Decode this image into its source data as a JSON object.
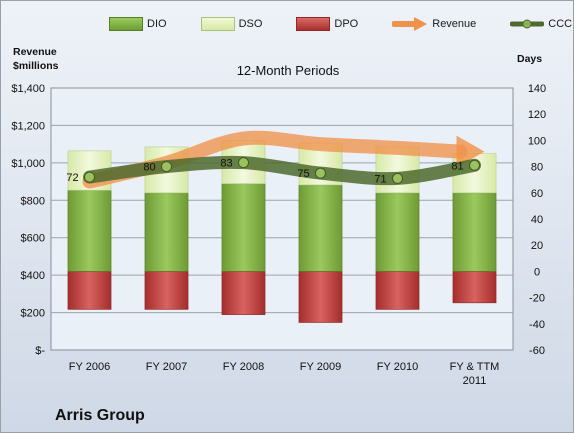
{
  "chart_data": {
    "type": "bar",
    "title": "12-Month Periods",
    "company": "Arris Group",
    "left_axis_label": "Revenue\n$millions",
    "left_axis_label_lines": [
      "Revenue",
      "$millions"
    ],
    "right_axis_label": "Days",
    "categories": [
      "FY 2006",
      "FY 2007",
      "FY 2008",
      "FY 2009",
      "FY 2010",
      "FY & TTM 2011"
    ],
    "category_lines": [
      [
        "FY 2006"
      ],
      [
        "FY 2007"
      ],
      [
        "FY 2008"
      ],
      [
        "FY 2009"
      ],
      [
        "FY 2010"
      ],
      [
        "FY & TTM",
        "2011"
      ]
    ],
    "left_axis": {
      "min": 0,
      "max": 1400,
      "step": 200,
      "ticks": [
        "$-",
        "$200",
        "$400",
        "$600",
        "$800",
        "$1,000",
        "$1,200",
        "$1,400"
      ]
    },
    "right_axis": {
      "min": -60,
      "max": 140,
      "step": 20,
      "ticks": [
        "-60",
        "-40",
        "-20",
        "0",
        "20",
        "40",
        "60",
        "80",
        "100",
        "120",
        "140"
      ]
    },
    "series": [
      {
        "name": "DIO",
        "axis": "days",
        "values": [
          62,
          60,
          67,
          66,
          60,
          60
        ],
        "color": "#7aa83f"
      },
      {
        "name": "DSO",
        "axis": "days",
        "values": [
          30,
          35,
          33,
          32,
          35,
          30
        ],
        "color": "#e3efbb"
      },
      {
        "name": "DPO",
        "axis": "days",
        "values": [
          -29,
          -29,
          -33,
          -39,
          -29,
          -24
        ],
        "color": "#c04744"
      },
      {
        "name": "Revenue",
        "axis": "revenue",
        "values": [
          900,
          1000,
          1130,
          1100,
          1080,
          1060
        ],
        "color": "#f0924a"
      },
      {
        "name": "CCC",
        "axis": "days",
        "values": [
          72,
          80,
          83,
          75,
          71,
          81
        ],
        "color": "#4f6a2e"
      }
    ],
    "ccc_labels": [
      "72",
      "80",
      "83",
      "75",
      "71",
      "81"
    ],
    "grid": true,
    "legend_position": "top"
  }
}
